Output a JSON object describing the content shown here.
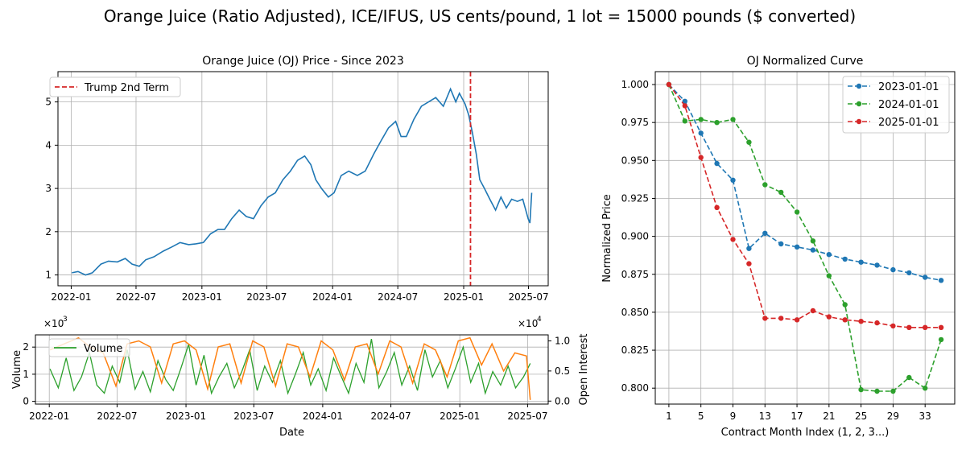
{
  "figure": {
    "suptitle": "Orange Juice (Ratio Adjusted), ICE/IFUS, US cents/pound, 1 lot = 15000 pounds ($ converted)"
  },
  "colors": {
    "price": "#1f77b4",
    "volume": "#2ca02c",
    "open_interest": "#ff7f0e",
    "event_line": "#d62728",
    "curve_2023": "#1f77b4",
    "curve_2024": "#2ca02c",
    "curve_2025": "#d62728",
    "grid": "#b0b0b0"
  },
  "chart_data": [
    {
      "id": "price",
      "type": "line",
      "title": "Orange Juice (OJ) Price - Since 2023",
      "xlabel": "",
      "ylabel": "",
      "x_ticks": [
        "2022-01",
        "2022-07",
        "2023-01",
        "2023-07",
        "2024-01",
        "2024-07",
        "2025-01",
        "2025-07"
      ],
      "y_ticks": [
        "1",
        "2",
        "3",
        "4",
        "5"
      ],
      "ylim": [
        0.75,
        5.7
      ],
      "xlim": [
        "2021-11-25",
        "2025-08-25"
      ],
      "grid": true,
      "legend": "top-left",
      "series": [
        {
          "x": [
            "2022-01-03",
            "2022-01-20",
            "2022-02-10",
            "2022-03-01",
            "2022-03-25",
            "2022-04-15",
            "2022-05-10",
            "2022-06-01",
            "2022-06-20",
            "2022-07-10",
            "2022-07-28",
            "2022-08-20",
            "2022-09-15",
            "2022-10-10",
            "2022-11-01",
            "2022-11-25",
            "2022-12-15",
            "2023-01-05",
            "2023-01-25",
            "2023-02-15",
            "2023-03-05",
            "2023-03-25",
            "2023-04-15",
            "2023-05-05",
            "2023-05-25",
            "2023-06-15",
            "2023-07-05",
            "2023-07-25",
            "2023-08-15",
            "2023-09-05",
            "2023-09-25",
            "2023-10-15",
            "2023-11-01",
            "2023-11-15",
            "2023-12-01",
            "2023-12-20",
            "2024-01-05",
            "2024-01-25",
            "2024-02-15",
            "2024-03-10",
            "2024-04-01",
            "2024-04-25",
            "2024-05-15",
            "2024-06-05",
            "2024-06-25",
            "2024-07-10",
            "2024-07-25",
            "2024-08-15",
            "2024-09-05",
            "2024-09-25",
            "2024-10-15",
            "2024-11-05",
            "2024-11-25",
            "2024-12-10",
            "2024-12-20",
            "2025-01-05",
            "2025-01-15",
            "2025-01-25",
            "2025-02-05",
            "2025-02-15",
            "2025-02-28",
            "2025-03-15",
            "2025-03-31",
            "2025-04-15",
            "2025-04-30",
            "2025-05-15",
            "2025-05-31",
            "2025-06-15",
            "2025-06-30",
            "2025-07-05",
            "2025-07-10"
          ],
          "y": [
            1.05,
            1.08,
            1.0,
            1.05,
            1.25,
            1.32,
            1.3,
            1.38,
            1.25,
            1.2,
            1.35,
            1.42,
            1.55,
            1.65,
            1.75,
            1.7,
            1.72,
            1.75,
            1.95,
            2.05,
            2.05,
            2.3,
            2.5,
            2.35,
            2.3,
            2.6,
            2.8,
            2.9,
            3.2,
            3.4,
            3.65,
            3.75,
            3.55,
            3.2,
            3.0,
            2.8,
            2.9,
            3.3,
            3.4,
            3.3,
            3.4,
            3.8,
            4.1,
            4.4,
            4.55,
            4.2,
            4.2,
            4.6,
            4.9,
            5.0,
            5.1,
            4.9,
            5.3,
            5.0,
            5.2,
            4.95,
            4.7,
            4.3,
            3.8,
            3.2,
            3.0,
            2.75,
            2.5,
            2.8,
            2.55,
            2.75,
            2.7,
            2.75,
            2.3,
            2.2,
            2.9
          ]
        }
      ],
      "annotations": [
        {
          "label": "Trump 2nd Term",
          "x": "2025-01-20",
          "style": "dashed"
        }
      ]
    },
    {
      "id": "volume_oi",
      "type": "line",
      "title": "",
      "xlabel": "Date",
      "ylabel": "Volume",
      "y2label": "Open Interest",
      "x_ticks": [
        "2022-01",
        "2022-07",
        "2023-01",
        "2023-07",
        "2024-01",
        "2024-07",
        "2025-01",
        "2025-07"
      ],
      "y_ticks": [
        "0",
        "1",
        "2"
      ],
      "y2_ticks": [
        "0.0",
        "0.5",
        "1.0"
      ],
      "y_offset_label": "×10^3",
      "y2_offset_label": "×10^4",
      "ylim": [
        -100,
        2450
      ],
      "y2lim": [
        -500,
        11000
      ],
      "xlim": [
        "2021-11-25",
        "2025-08-25"
      ],
      "grid": true,
      "legend": "top-left",
      "series": [
        {
          "name": "Volume",
          "axis": "left",
          "x": [
            "2022-01-03",
            "2022-01-25",
            "2022-02-15",
            "2022-03-08",
            "2022-03-28",
            "2022-04-18",
            "2022-05-08",
            "2022-05-28",
            "2022-06-18",
            "2022-07-08",
            "2022-07-28",
            "2022-08-18",
            "2022-09-08",
            "2022-09-28",
            "2022-10-18",
            "2022-11-08",
            "2022-11-28",
            "2022-12-18",
            "2023-01-08",
            "2023-01-28",
            "2023-02-18",
            "2023-03-10",
            "2023-03-30",
            "2023-04-20",
            "2023-05-10",
            "2023-05-30",
            "2023-06-20",
            "2023-07-10",
            "2023-07-30",
            "2023-08-20",
            "2023-09-10",
            "2023-09-30",
            "2023-10-20",
            "2023-11-10",
            "2023-11-30",
            "2023-12-20",
            "2024-01-10",
            "2024-01-30",
            "2024-02-20",
            "2024-03-10",
            "2024-03-30",
            "2024-04-20",
            "2024-05-10",
            "2024-05-30",
            "2024-06-20",
            "2024-07-10",
            "2024-07-30",
            "2024-08-20",
            "2024-09-10",
            "2024-09-30",
            "2024-10-20",
            "2024-11-10",
            "2024-11-30",
            "2024-12-20",
            "2025-01-10",
            "2025-01-30",
            "2025-02-20",
            "2025-03-10",
            "2025-03-30",
            "2025-04-20",
            "2025-05-10",
            "2025-05-30",
            "2025-06-20",
            "2025-07-08"
          ],
          "y": [
            1200,
            500,
            1600,
            400,
            900,
            1800,
            600,
            300,
            1300,
            700,
            1900,
            450,
            1100,
            350,
            1500,
            800,
            400,
            1200,
            2100,
            600,
            1700,
            300,
            900,
            1400,
            500,
            1100,
            1900,
            400,
            1300,
            700,
            1500,
            300,
            1000,
            1800,
            600,
            1200,
            400,
            1600,
            900,
            300,
            1400,
            700,
            2300,
            500,
            1100,
            1800,
            600,
            1300,
            400,
            1900,
            900,
            1500,
            500,
            1200,
            2000,
            700,
            1400,
            300,
            1100,
            600,
            1300,
            500,
            900,
            1400
          ]
        },
        {
          "name": "",
          "axis": "right",
          "x": [
            "2022-01-03",
            "2022-02-10",
            "2022-03-20",
            "2022-04-20",
            "2022-05-25",
            "2022-06-28",
            "2022-07-28",
            "2022-08-28",
            "2022-09-28",
            "2022-10-28",
            "2022-11-28",
            "2022-12-28",
            "2023-01-28",
            "2023-02-28",
            "2023-03-28",
            "2023-04-28",
            "2023-05-28",
            "2023-06-28",
            "2023-07-28",
            "2023-08-28",
            "2023-09-28",
            "2023-10-28",
            "2023-11-28",
            "2023-12-28",
            "2024-01-28",
            "2024-02-28",
            "2024-03-28",
            "2024-04-28",
            "2024-05-28",
            "2024-06-28",
            "2024-07-28",
            "2024-08-28",
            "2024-09-28",
            "2024-10-28",
            "2024-11-28",
            "2024-12-28",
            "2025-01-28",
            "2025-02-28",
            "2025-03-28",
            "2025-04-28",
            "2025-05-28",
            "2025-06-28",
            "2025-07-08"
          ],
          "y": [
            8500,
            9500,
            10500,
            9000,
            8000,
            2500,
            9500,
            10000,
            9000,
            3000,
            9500,
            10000,
            8500,
            2000,
            9000,
            9500,
            3000,
            10000,
            9000,
            2500,
            9500,
            9000,
            4000,
            10000,
            8500,
            3500,
            9000,
            9500,
            4500,
            10000,
            9000,
            3000,
            9500,
            8500,
            4000,
            10000,
            10500,
            6000,
            9500,
            5000,
            8000,
            7500,
            200
          ]
        }
      ]
    },
    {
      "id": "curve",
      "type": "line",
      "title": "OJ Normalized Curve",
      "xlabel": "Contract Month Index (1, 2, 3...)",
      "ylabel": "Normalized Price",
      "x_ticks": [
        "1",
        "5",
        "9",
        "13",
        "17",
        "21",
        "25",
        "29",
        "33"
      ],
      "y_ticks": [
        "0.800",
        "0.825",
        "0.850",
        "0.875",
        "0.900",
        "0.925",
        "0.950",
        "0.975",
        "1.000"
      ],
      "xlim": [
        -0.7,
        36.7
      ],
      "ylim": [
        0.7895,
        1.0085
      ],
      "grid": true,
      "legend": "top-right",
      "series": [
        {
          "name": "2023-01-01",
          "x": [
            1,
            3,
            5,
            7,
            9,
            11,
            13,
            15,
            17,
            19,
            21,
            23,
            25,
            27,
            29,
            31,
            33,
            35
          ],
          "y": [
            1.0,
            0.989,
            0.968,
            0.948,
            0.937,
            0.892,
            0.902,
            0.895,
            0.893,
            0.891,
            0.888,
            0.885,
            0.883,
            0.881,
            0.878,
            0.876,
            0.873,
            0.871
          ]
        },
        {
          "name": "2024-01-01",
          "x": [
            1,
            3,
            5,
            7,
            9,
            11,
            13,
            15,
            17,
            19,
            21,
            23,
            25,
            27,
            29,
            31,
            33,
            35
          ],
          "y": [
            1.0,
            0.976,
            0.977,
            0.975,
            0.977,
            0.962,
            0.934,
            0.929,
            0.916,
            0.897,
            0.874,
            0.855,
            0.799,
            0.798,
            0.798,
            0.807,
            0.8,
            0.832
          ]
        },
        {
          "name": "2025-01-01",
          "x": [
            1,
            3,
            5,
            7,
            9,
            11,
            13,
            15,
            17,
            19,
            21,
            23,
            25,
            27,
            29,
            31,
            33,
            35
          ],
          "y": [
            1.0,
            0.986,
            0.952,
            0.919,
            0.898,
            0.882,
            0.846,
            0.846,
            0.845,
            0.851,
            0.847,
            0.845,
            0.844,
            0.843,
            0.841,
            0.84,
            0.84,
            0.84
          ]
        }
      ]
    }
  ]
}
